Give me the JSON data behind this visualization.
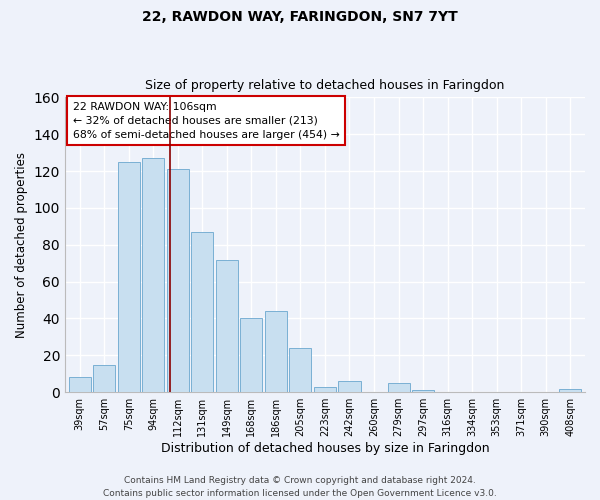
{
  "title": "22, RAWDON WAY, FARINGDON, SN7 7YT",
  "subtitle": "Size of property relative to detached houses in Faringdon",
  "xlabel": "Distribution of detached houses by size in Faringdon",
  "ylabel": "Number of detached properties",
  "bar_labels": [
    "39sqm",
    "57sqm",
    "75sqm",
    "94sqm",
    "112sqm",
    "131sqm",
    "149sqm",
    "168sqm",
    "186sqm",
    "205sqm",
    "223sqm",
    "242sqm",
    "260sqm",
    "279sqm",
    "297sqm",
    "316sqm",
    "334sqm",
    "353sqm",
    "371sqm",
    "390sqm",
    "408sqm"
  ],
  "bar_values": [
    8,
    15,
    125,
    127,
    121,
    87,
    72,
    40,
    44,
    24,
    3,
    6,
    0,
    5,
    1,
    0,
    0,
    0,
    0,
    0,
    2
  ],
  "bar_color": "#c8dff0",
  "bar_edge_color": "#7ab0d4",
  "vline_x": 3.7,
  "vline_color": "#8b0000",
  "ylim": [
    0,
    160
  ],
  "annotation_line1": "22 RAWDON WAY: 106sqm",
  "annotation_line2": "← 32% of detached houses are smaller (213)",
  "annotation_line3": "68% of semi-detached houses are larger (454) →",
  "footer_line1": "Contains HM Land Registry data © Crown copyright and database right 2024.",
  "footer_line2": "Contains public sector information licensed under the Open Government Licence v3.0.",
  "background_color": "#eef2fa",
  "grid_color": "#ffffff",
  "title_fontsize": 10,
  "subtitle_fontsize": 9,
  "ylabel_fontsize": 8.5,
  "xlabel_fontsize": 9
}
